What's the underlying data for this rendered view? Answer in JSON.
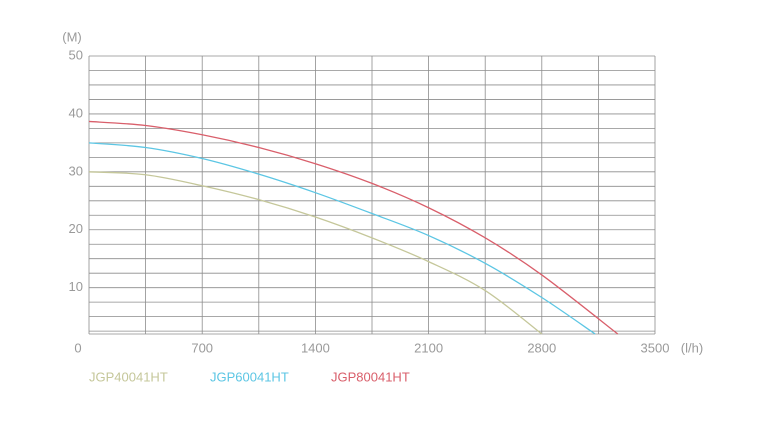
{
  "chart_data": {
    "type": "line",
    "y_unit": "(M)",
    "x_unit": "(l/h)",
    "xlim": [
      0,
      3500
    ],
    "ylim": [
      2,
      50
    ],
    "xticks": [
      0,
      700,
      1400,
      2100,
      2800,
      3500
    ],
    "yticks": [
      10,
      20,
      30,
      40,
      50
    ],
    "xgrid": [
      0,
      350,
      700,
      1050,
      1400,
      1750,
      2100,
      2450,
      2800,
      3150,
      3500
    ],
    "ygrid": [
      2.5,
      5,
      7.5,
      10,
      12.5,
      15,
      17.5,
      20,
      22.5,
      25,
      27.5,
      30,
      32.5,
      35,
      37.5,
      40,
      42.5,
      45,
      47.5,
      50
    ],
    "grid": true,
    "series": [
      {
        "name": "JGP40041HT",
        "color": "#c5c79a",
        "x": [
          0,
          350,
          700,
          1050,
          1400,
          1750,
          2100,
          2450,
          2800
        ],
        "values": [
          30,
          29.5,
          27.6,
          25.2,
          22.2,
          18.6,
          14.5,
          9.5,
          2
        ]
      },
      {
        "name": "JGP60041HT",
        "color": "#5cc6e4",
        "x": [
          0,
          350,
          700,
          1050,
          1400,
          1750,
          2100,
          2450,
          2800,
          3130
        ],
        "values": [
          35,
          34.2,
          32.3,
          29.6,
          26.4,
          22.8,
          19,
          14.2,
          8.3,
          2
        ]
      },
      {
        "name": "JGP80041HT",
        "color": "#d95f6b",
        "x": [
          0,
          350,
          700,
          1050,
          1400,
          1750,
          2100,
          2450,
          2800,
          3270
        ],
        "values": [
          38.7,
          38,
          36.4,
          34.2,
          31.4,
          28,
          23.8,
          18.6,
          12.2,
          2
        ]
      }
    ]
  }
}
